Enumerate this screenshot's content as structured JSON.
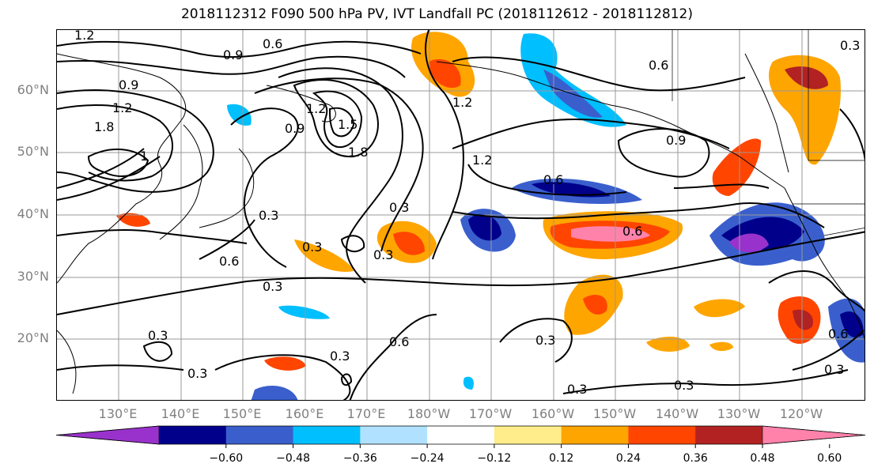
{
  "title": "2018112312 F090 500 hPa PV, IVT Landfall PC (2018112612 - 2018112812)",
  "lat_labels": [
    "60°N",
    "50°N",
    "40°N",
    "30°N",
    "20°N"
  ],
  "lon_labels": [
    "130°E",
    "140°E",
    "150°E",
    "160°E",
    "170°E",
    "180°W",
    "170°W",
    "160°W",
    "150°W",
    "140°W",
    "130°W",
    "120°W"
  ],
  "contour_labels": [
    "1.2",
    "0.6",
    "0.9",
    "0.9",
    "1.2",
    "1.8",
    "1",
    "1.2",
    "1.5",
    "1.8",
    "0.9",
    "0.3",
    "0.3",
    "0.3",
    "0.6",
    "0.3",
    "0.3",
    "0.3",
    "0.3",
    "0.3",
    "0.6",
    "1.2",
    "0.6",
    "0.9",
    "1.2",
    "0.6",
    "0.6",
    "0.3",
    "0.3",
    "0.3",
    "0.3",
    "0.6",
    "0.3"
  ],
  "colorbar": {
    "colors": [
      "#9932CC",
      "#00008B",
      "#3A5FCD",
      "#00BFFF",
      "#B0E2FF",
      "#FFFFFF",
      "#FFEC8B",
      "#FFA500",
      "#FF4500",
      "#B22222",
      "#FF82AB"
    ],
    "ticks": [
      "−0.60",
      "−0.48",
      "−0.36",
      "−0.24",
      "−0.12",
      "0.12",
      "0.24",
      "0.36",
      "0.48",
      "0.60"
    ]
  },
  "palette": {
    "neg_strong": "#00008B",
    "neg_mid": "#3A5FCD",
    "neg_light": "#00BFFF",
    "pos_light": "#FFA500",
    "pos_mid": "#FF4500",
    "pos_strong": "#B22222",
    "pos_max": "#FF82AB",
    "grid": "#999999"
  }
}
